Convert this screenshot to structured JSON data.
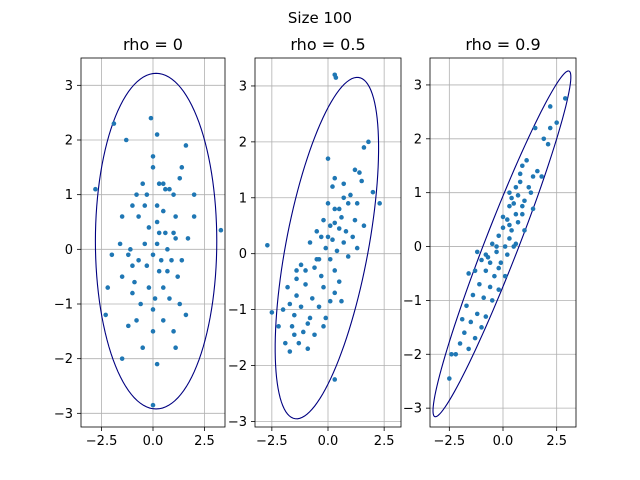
{
  "figure": {
    "suptitle": "Size 100",
    "colors": {
      "points": "#1f77b4",
      "ellipse": "#000080",
      "grid": "#b0b0b0",
      "axes": "#000000"
    }
  },
  "chart_data": [
    {
      "type": "scatter",
      "title": "rho = 0",
      "xlabel": "",
      "ylabel": "",
      "xlim": [
        -3.5,
        3.5
      ],
      "ylim": [
        -3.25,
        3.5
      ],
      "xticks": [
        -2.5,
        0.0,
        2.5
      ],
      "xtick_labels": [
        "−2.5",
        "0.0",
        "2.5"
      ],
      "yticks": [
        -3,
        -2,
        -1,
        0,
        1,
        2,
        3
      ],
      "ytick_labels": [
        "−3",
        "−2",
        "−1",
        "0",
        "1",
        "2",
        "3"
      ],
      "grid": true,
      "ellipse": {
        "cx": 0.15,
        "cy": 0.15,
        "a": 3.07,
        "b": 2.95,
        "angle_deg": 90
      },
      "points": [
        [
          -2.8,
          1.1
        ],
        [
          -1.9,
          2.3
        ],
        [
          -1.3,
          2.0
        ],
        [
          -0.1,
          2.4
        ],
        [
          0.2,
          2.1
        ],
        [
          1.6,
          1.9
        ],
        [
          1.4,
          1.5
        ],
        [
          0.0,
          1.7
        ],
        [
          0.0,
          1.5
        ],
        [
          -0.5,
          1.2
        ],
        [
          -0.8,
          1.0
        ],
        [
          -1.0,
          0.8
        ],
        [
          -1.5,
          0.6
        ],
        [
          -0.7,
          0.6
        ],
        [
          -0.3,
          1.0
        ],
        [
          0.3,
          1.2
        ],
        [
          0.5,
          1.2
        ],
        [
          0.6,
          1.1
        ],
        [
          0.8,
          1.1
        ],
        [
          1.0,
          1.0
        ],
        [
          1.3,
          1.3
        ],
        [
          2.0,
          1.0
        ],
        [
          0.2,
          0.8
        ],
        [
          0.5,
          0.7
        ],
        [
          1.1,
          0.6
        ],
        [
          2.0,
          0.6
        ],
        [
          -0.2,
          0.4
        ],
        [
          0.3,
          0.3
        ],
        [
          0.6,
          0.3
        ],
        [
          1.0,
          0.3
        ],
        [
          -1.6,
          0.1
        ],
        [
          -1.1,
          0.0
        ],
        [
          -0.4,
          0.1
        ],
        [
          0.2,
          0.1
        ],
        [
          0.7,
          0.0
        ],
        [
          1.1,
          0.2
        ],
        [
          1.7,
          0.2
        ],
        [
          3.3,
          0.35
        ],
        [
          -2.0,
          -0.1
        ],
        [
          -1.2,
          -0.1
        ],
        [
          -0.7,
          -0.2
        ],
        [
          0.0,
          -0.1
        ],
        [
          0.4,
          -0.2
        ],
        [
          0.9,
          -0.2
        ],
        [
          1.4,
          -0.2
        ],
        [
          -1.0,
          -0.3
        ],
        [
          -0.3,
          -0.3
        ],
        [
          0.3,
          -0.4
        ],
        [
          0.7,
          -0.4
        ],
        [
          1.2,
          -0.5
        ],
        [
          -1.5,
          -0.5
        ],
        [
          -0.9,
          -0.6
        ],
        [
          -0.2,
          -0.7
        ],
        [
          0.5,
          -0.7
        ],
        [
          -2.2,
          -0.7
        ],
        [
          -1.0,
          -0.8
        ],
        [
          0.1,
          -0.9
        ],
        [
          0.8,
          -0.9
        ],
        [
          -0.6,
          -1.0
        ],
        [
          0.0,
          -1.1
        ],
        [
          1.3,
          -1.0
        ],
        [
          -0.8,
          -1.3
        ],
        [
          0.5,
          -1.3
        ],
        [
          1.6,
          -1.2
        ],
        [
          -2.3,
          -1.2
        ],
        [
          -1.2,
          -1.4
        ],
        [
          0.0,
          -1.5
        ],
        [
          1.0,
          -1.5
        ],
        [
          -0.5,
          -1.8
        ],
        [
          1.1,
          -1.8
        ],
        [
          -1.5,
          -2.0
        ],
        [
          0.2,
          -2.1
        ],
        [
          0.0,
          -2.85
        ],
        [
          0.2,
          0.5
        ],
        [
          -0.4,
          0.8
        ]
      ]
    },
    {
      "type": "scatter",
      "title": "rho = 0.5",
      "xlabel": "",
      "ylabel": "",
      "xlim": [
        -3.25,
        3.25
      ],
      "ylim": [
        -3.1,
        3.5
      ],
      "xticks": [
        -2.5,
        0.0,
        2.5
      ],
      "xtick_labels": [
        "−2.5",
        "0.0",
        "2.5"
      ],
      "yticks": [
        -3,
        -2,
        -1,
        0,
        1,
        2,
        3
      ],
      "ytick_labels": [
        "−3",
        "−2",
        "−1",
        "0",
        "1",
        "2",
        "3"
      ],
      "grid": true,
      "ellipse": {
        "cx": -0.05,
        "cy": 0.1,
        "a": 3.45,
        "b": 1.65,
        "angle_deg": 58
      },
      "points": [
        [
          0.3,
          3.2
        ],
        [
          0.35,
          3.15
        ],
        [
          -2.7,
          0.15
        ],
        [
          1.8,
          2.0
        ],
        [
          1.6,
          1.9
        ],
        [
          0.0,
          1.7
        ],
        [
          1.2,
          1.5
        ],
        [
          1.4,
          1.45
        ],
        [
          0.3,
          1.35
        ],
        [
          0.2,
          1.2
        ],
        [
          2.0,
          1.1
        ],
        [
          1.0,
          1.05
        ],
        [
          0.7,
          1.0
        ],
        [
          0.9,
          0.9
        ],
        [
          1.3,
          0.9
        ],
        [
          2.3,
          0.9
        ],
        [
          0.0,
          0.9
        ],
        [
          0.3,
          0.8
        ],
        [
          0.5,
          0.8
        ],
        [
          -0.2,
          0.6
        ],
        [
          0.6,
          0.65
        ],
        [
          1.2,
          0.6
        ],
        [
          0.1,
          0.5
        ],
        [
          0.5,
          0.45
        ],
        [
          0.8,
          0.4
        ],
        [
          1.1,
          0.3
        ],
        [
          -0.3,
          0.3
        ],
        [
          0.2,
          0.25
        ],
        [
          0.7,
          0.2
        ],
        [
          1.3,
          0.1
        ],
        [
          -0.8,
          0.2
        ],
        [
          -0.1,
          0.1
        ],
        [
          0.4,
          0.05
        ],
        [
          0.9,
          -0.05
        ],
        [
          -0.5,
          -0.1
        ],
        [
          0.1,
          -0.1
        ],
        [
          -1.2,
          -0.2
        ],
        [
          -0.6,
          -0.25
        ],
        [
          0.3,
          -0.3
        ],
        [
          -1.4,
          -0.45
        ],
        [
          -0.3,
          -0.4
        ],
        [
          0.5,
          -0.5
        ],
        [
          -1.8,
          -0.6
        ],
        [
          -1.0,
          -0.55
        ],
        [
          -0.2,
          -0.6
        ],
        [
          -1.4,
          -0.75
        ],
        [
          -0.7,
          -0.8
        ],
        [
          0.1,
          -0.85
        ],
        [
          -1.7,
          -0.9
        ],
        [
          -1.2,
          -0.95
        ],
        [
          -0.4,
          -0.95
        ],
        [
          0.6,
          -0.85
        ],
        [
          -2.0,
          -1.0
        ],
        [
          -1.5,
          -1.1
        ],
        [
          -0.8,
          -1.15
        ],
        [
          -0.1,
          -1.15
        ],
        [
          -2.2,
          -1.3
        ],
        [
          -1.6,
          -1.3
        ],
        [
          -1.1,
          -1.4
        ],
        [
          -0.6,
          -1.45
        ],
        [
          -1.9,
          -1.6
        ],
        [
          -1.3,
          -1.6
        ],
        [
          -0.9,
          -1.7
        ],
        [
          -1.7,
          -1.75
        ],
        [
          -0.2,
          -1.3
        ],
        [
          0.3,
          -0.7
        ],
        [
          -0.5,
          0.4
        ],
        [
          0.3,
          0.55
        ],
        [
          -0.4,
          -0.1
        ],
        [
          -1.0,
          -0.3
        ],
        [
          0.3,
          -2.25
        ],
        [
          1.5,
          1.3
        ],
        [
          0.0,
          0.3
        ],
        [
          0.7,
          1.25
        ],
        [
          1.6,
          0.5
        ],
        [
          -1.5,
          -1.45
        ],
        [
          -0.9,
          -1.25
        ],
        [
          -2.5,
          -1.05
        ],
        [
          -1.4,
          -0.3
        ]
      ]
    },
    {
      "type": "scatter",
      "title": "rho = 0.9",
      "xlabel": "",
      "ylabel": "",
      "xlim": [
        -3.4,
        3.4
      ],
      "ylim": [
        -3.35,
        3.5
      ],
      "xticks": [
        -2.5,
        0.0,
        2.5
      ],
      "xtick_labels": [
        "−2.5",
        "0.0",
        "2.5"
      ],
      "yticks": [
        -3,
        -2,
        -1,
        0,
        1,
        2,
        3
      ],
      "ytick_labels": [
        "−3",
        "−2",
        "−1",
        "0",
        "1",
        "2",
        "3"
      ],
      "grid": true,
      "ellipse": {
        "cx": -0.05,
        "cy": 0.05,
        "a": 4.5,
        "b": 0.6,
        "angle_deg": 45
      },
      "points": [
        [
          2.9,
          2.75
        ],
        [
          2.2,
          2.6
        ],
        [
          2.2,
          2.2
        ],
        [
          2.5,
          2.3
        ],
        [
          1.5,
          2.2
        ],
        [
          1.9,
          2.0
        ],
        [
          2.1,
          1.9
        ],
        [
          1.1,
          1.6
        ],
        [
          1.4,
          1.3
        ],
        [
          1.8,
          1.3
        ],
        [
          0.8,
          1.2
        ],
        [
          1.2,
          1.1
        ],
        [
          0.3,
          1.0
        ],
        [
          0.7,
          0.95
        ],
        [
          1.0,
          0.85
        ],
        [
          0.5,
          0.8
        ],
        [
          0.9,
          0.75
        ],
        [
          0.3,
          0.75
        ],
        [
          1.4,
          0.7
        ],
        [
          0.6,
          0.6
        ],
        [
          0.2,
          0.5
        ],
        [
          0.7,
          0.45
        ],
        [
          0.0,
          0.35
        ],
        [
          0.4,
          0.3
        ],
        [
          1.0,
          0.3
        ],
        [
          -0.2,
          0.2
        ],
        [
          0.3,
          0.15
        ],
        [
          -0.5,
          0.05
        ],
        [
          0.1,
          0.0
        ],
        [
          0.6,
          0.05
        ],
        [
          -0.8,
          -0.15
        ],
        [
          -0.3,
          -0.1
        ],
        [
          0.2,
          -0.15
        ],
        [
          -1.0,
          -0.25
        ],
        [
          -0.6,
          -0.3
        ],
        [
          -0.1,
          -0.3
        ],
        [
          -1.3,
          -0.45
        ],
        [
          -0.8,
          -0.45
        ],
        [
          -0.4,
          -0.55
        ],
        [
          0.1,
          -0.55
        ],
        [
          -1.6,
          -0.5
        ],
        [
          -1.1,
          -0.7
        ],
        [
          -0.6,
          -0.75
        ],
        [
          -0.2,
          -0.8
        ],
        [
          -1.4,
          -0.9
        ],
        [
          -0.9,
          -0.95
        ],
        [
          -0.5,
          -1.0
        ],
        [
          -1.7,
          -1.1
        ],
        [
          -1.2,
          -1.25
        ],
        [
          -0.8,
          -1.3
        ],
        [
          -1.5,
          -1.4
        ],
        [
          -1.0,
          -1.5
        ],
        [
          -1.8,
          -1.6
        ],
        [
          -1.3,
          -1.7
        ],
        [
          -2.0,
          -1.8
        ],
        [
          -2.4,
          -2.0
        ],
        [
          -2.2,
          -2.0
        ],
        [
          -1.6,
          -1.9
        ],
        [
          -2.5,
          -2.45
        ],
        [
          0.8,
          1.35
        ],
        [
          0.9,
          1.5
        ],
        [
          0.0,
          0.55
        ],
        [
          0.5,
          0.0
        ],
        [
          -0.7,
          -0.2
        ],
        [
          1.3,
          1.0
        ],
        [
          -1.9,
          -1.35
        ],
        [
          0.4,
          0.9
        ],
        [
          0.6,
          1.1
        ],
        [
          -0.3,
          0.0
        ],
        [
          0.9,
          0.6
        ],
        [
          -1.2,
          -0.1
        ],
        [
          -0.2,
          -0.4
        ],
        [
          0.3,
          0.4
        ],
        [
          1.6,
          1.4
        ]
      ]
    }
  ]
}
